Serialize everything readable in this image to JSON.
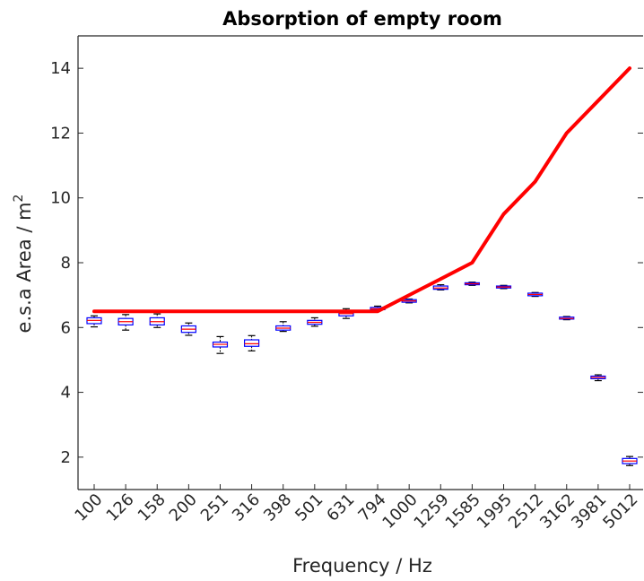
{
  "chart_data": {
    "type": "box",
    "title": "Absorption of empty room",
    "xlabel": "Frequency / Hz",
    "ylabel": "e.s.a Area / m",
    "ylabel_superscript": "2",
    "ylim": [
      1,
      15
    ],
    "yticks": [
      2,
      4,
      6,
      8,
      10,
      12,
      14
    ],
    "categories": [
      "100",
      "126",
      "158",
      "200",
      "251",
      "316",
      "398",
      "501",
      "631",
      "794",
      "1000",
      "1259",
      "1585",
      "1995",
      "2512",
      "3162",
      "3981",
      "5012"
    ],
    "boxes": [
      {
        "min": 6.02,
        "q1": 6.12,
        "median": 6.22,
        "q3": 6.3,
        "max": 6.36
      },
      {
        "min": 5.92,
        "q1": 6.08,
        "median": 6.18,
        "q3": 6.28,
        "max": 6.4
      },
      {
        "min": 6.0,
        "q1": 6.08,
        "median": 6.18,
        "q3": 6.3,
        "max": 6.42
      },
      {
        "min": 5.76,
        "q1": 5.85,
        "median": 5.95,
        "q3": 6.05,
        "max": 6.14
      },
      {
        "min": 5.2,
        "q1": 5.4,
        "median": 5.48,
        "q3": 5.55,
        "max": 5.72
      },
      {
        "min": 5.28,
        "q1": 5.42,
        "median": 5.5,
        "q3": 5.62,
        "max": 5.75
      },
      {
        "min": 5.88,
        "q1": 5.92,
        "median": 5.98,
        "q3": 6.05,
        "max": 6.18
      },
      {
        "min": 6.04,
        "q1": 6.1,
        "median": 6.16,
        "q3": 6.22,
        "max": 6.3
      },
      {
        "min": 6.28,
        "q1": 6.36,
        "median": 6.43,
        "q3": 6.5,
        "max": 6.58
      },
      {
        "min": 6.52,
        "q1": 6.55,
        "median": 6.58,
        "q3": 6.62,
        "max": 6.66
      },
      {
        "min": 6.76,
        "q1": 6.78,
        "median": 6.82,
        "q3": 6.86,
        "max": 6.88
      },
      {
        "min": 7.16,
        "q1": 7.18,
        "median": 7.22,
        "q3": 7.28,
        "max": 7.32
      },
      {
        "min": 7.3,
        "q1": 7.32,
        "median": 7.35,
        "q3": 7.38,
        "max": 7.4
      },
      {
        "min": 7.2,
        "q1": 7.22,
        "median": 7.25,
        "q3": 7.28,
        "max": 7.3
      },
      {
        "min": 6.96,
        "q1": 6.98,
        "median": 7.02,
        "q3": 7.06,
        "max": 7.08
      },
      {
        "min": 6.24,
        "q1": 6.26,
        "median": 6.28,
        "q3": 6.32,
        "max": 6.34
      },
      {
        "min": 4.36,
        "q1": 4.42,
        "median": 4.46,
        "q3": 4.5,
        "max": 4.54
      },
      {
        "min": 1.74,
        "q1": 1.8,
        "median": 1.88,
        "q3": 1.96,
        "max": 2.02
      }
    ],
    "line": {
      "values": [
        6.5,
        6.5,
        6.5,
        6.5,
        6.5,
        6.5,
        6.5,
        6.5,
        6.5,
        6.5,
        7.0,
        7.5,
        8.0,
        9.5,
        10.5,
        12.0,
        13.0,
        14.0
      ]
    },
    "colors": {
      "line": "#ff0000",
      "box_edge": "#0000ff",
      "median": "#ff0000",
      "whisker": "#000000",
      "axis": "#262626"
    },
    "grid": false
  }
}
